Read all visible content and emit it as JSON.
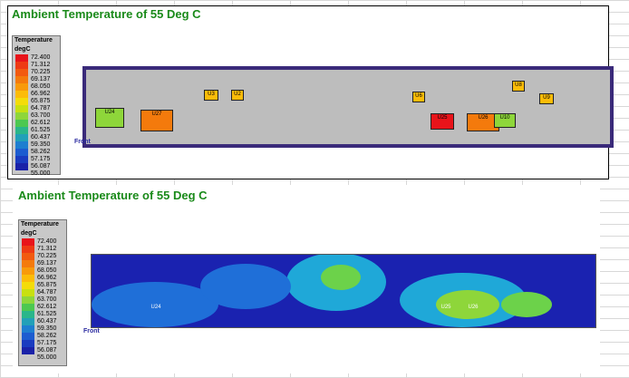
{
  "panels": [
    {
      "title": "Ambient Temperature of 55 Deg C",
      "legend": {
        "title": "Temperature",
        "unit": "degC",
        "levels": [
          "72.400",
          "71.312",
          "70.225",
          "69.137",
          "68.050",
          "66.962",
          "65.875",
          "64.787",
          "63.700",
          "62.612",
          "61.525",
          "60.437",
          "59.350",
          "58.262",
          "57.175",
          "56.087",
          "55.000"
        ]
      },
      "axis_label": "Front",
      "components": [
        "U24",
        "U27",
        "U3",
        "U2",
        "U6",
        "U25",
        "U26",
        "U8",
        "U9",
        "U10"
      ]
    },
    {
      "title": "Ambient Temperature of 55 Deg C",
      "legend": {
        "title": "Temperature",
        "unit": "degC",
        "levels": [
          "72.400",
          "71.312",
          "70.225",
          "69.137",
          "68.050",
          "66.962",
          "65.875",
          "64.787",
          "63.700",
          "62.612",
          "61.525",
          "60.437",
          "59.350",
          "58.262",
          "57.175",
          "56.087",
          "55.000"
        ]
      },
      "axis_label": "Front",
      "components": [
        "U24",
        "U25",
        "U26"
      ]
    }
  ]
}
